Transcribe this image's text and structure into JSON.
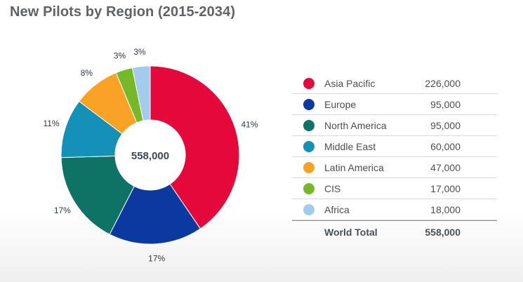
{
  "title": "New Pilots by Region (2015-2034)",
  "chart_data": {
    "type": "pie",
    "title": "New Pilots by Region (2015-2034)",
    "center_label": "558,000",
    "series": [
      {
        "name": "Asia Pacific",
        "value": 226000,
        "percent_label": "41%",
        "color": "#e4093a",
        "value_label": "226,000"
      },
      {
        "name": "Europe",
        "value": 95000,
        "percent_label": "17%",
        "color": "#0a3aa0",
        "value_label": "95,000"
      },
      {
        "name": "North America",
        "value": 95000,
        "percent_label": "17%",
        "color": "#0e7265",
        "value_label": "95,000"
      },
      {
        "name": "Middle East",
        "value": 60000,
        "percent_label": "11%",
        "color": "#1591b8",
        "value_label": "60,000"
      },
      {
        "name": "Latin America",
        "value": 47000,
        "percent_label": "8%",
        "color": "#f9a225",
        "value_label": "47,000"
      },
      {
        "name": "CIS",
        "value": 17000,
        "percent_label": "3%",
        "color": "#76b82a",
        "value_label": "17,000"
      },
      {
        "name": "Africa",
        "value": 18000,
        "percent_label": "3%",
        "color": "#a3cbeb",
        "value_label": "18,000"
      }
    ],
    "total": {
      "name": "World Total",
      "value_label": "558,000"
    }
  }
}
